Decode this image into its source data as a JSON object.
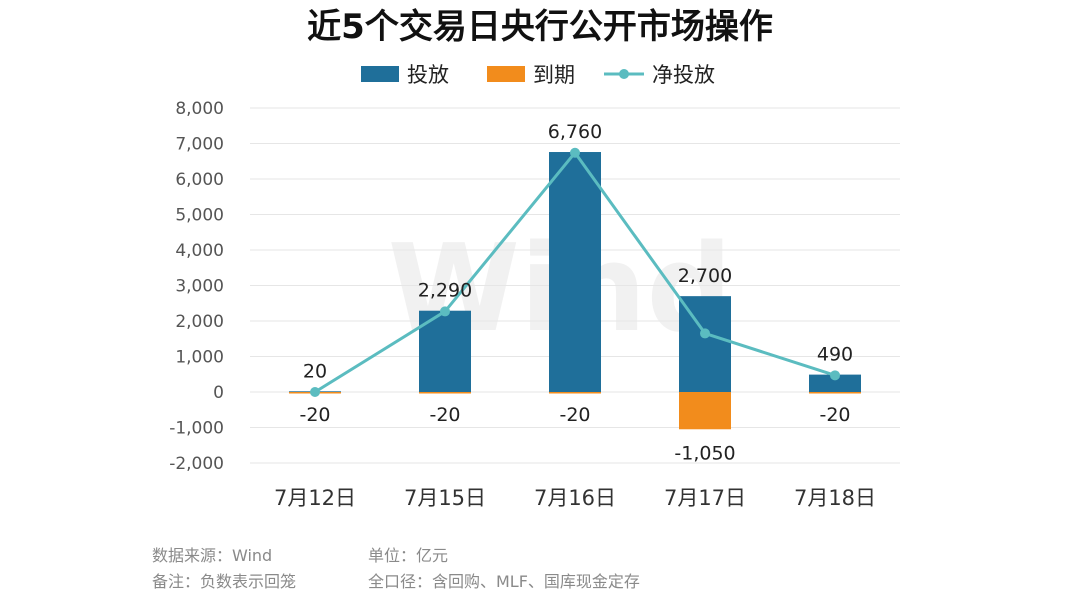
{
  "chart_data": {
    "type": "bar",
    "title": "近5个交易日央行公开市场操作",
    "categories": [
      "7月12日",
      "7月15日",
      "7月16日",
      "7月17日",
      "7月18日"
    ],
    "series": [
      {
        "name": "投放",
        "type": "bar",
        "values": [
          20,
          2290,
          6760,
          2700,
          490
        ],
        "labels": [
          "20",
          "2,290",
          "6,760",
          "2,700",
          "490"
        ]
      },
      {
        "name": "到期",
        "type": "bar",
        "values": [
          -20,
          -20,
          -20,
          -1050,
          -20
        ],
        "labels": [
          "-20",
          "-20",
          "-20",
          "-1,050",
          "-20"
        ]
      },
      {
        "name": "净投放",
        "type": "line",
        "values": [
          0,
          2270,
          6740,
          1650,
          470
        ]
      }
    ],
    "ylim": [
      -2000,
      8000
    ],
    "yticks": [
      8000,
      7000,
      6000,
      5000,
      4000,
      3000,
      2000,
      1000,
      0,
      -1000,
      -2000
    ],
    "ytick_labels": [
      "8,000",
      "7,000",
      "6,000",
      "5,000",
      "4,000",
      "3,000",
      "2,000",
      "1,000",
      "0",
      "-1,000",
      "-2,000"
    ],
    "grid": true,
    "legend_position": "top-center"
  },
  "colors": {
    "inflow": "#1f6f9a",
    "outflow": "#f28c1c",
    "net": "#5bbcc0",
    "grid": "#e6e6e6"
  },
  "watermark": "Wind",
  "footnotes": {
    "source": "数据来源：Wind",
    "unit": "单位：亿元",
    "note": "备注：负数表示回笼",
    "scope": "全口径：含回购、MLF、国库现金定存"
  }
}
